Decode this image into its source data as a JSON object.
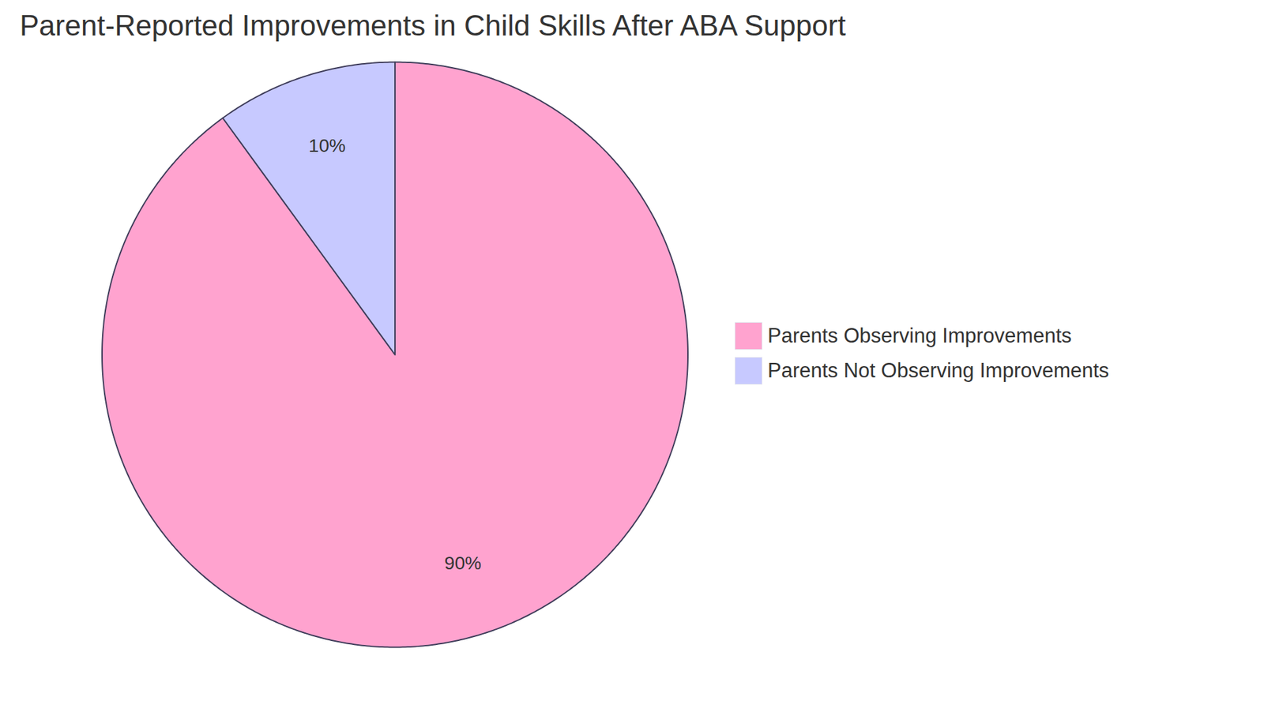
{
  "chart_data": {
    "type": "pie",
    "title": "Parent-Reported Improvements in Child Skills After ABA Support",
    "categories": [
      "Parents Observing Improvements",
      "Parents Not Observing Improvements"
    ],
    "values": [
      90,
      10
    ],
    "value_labels": [
      "90%",
      "10%"
    ],
    "colors": [
      "#ffa3cf",
      "#c7c9ff"
    ],
    "data_labels": true,
    "legend": "right"
  }
}
